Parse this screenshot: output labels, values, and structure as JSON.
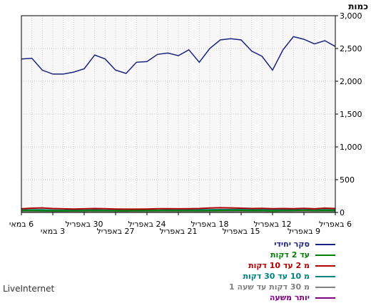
{
  "units_label": "כמות",
  "brand": "LiveInternet",
  "chart_data": {
    "type": "line",
    "y_axis_side": "right",
    "ylim": [
      0,
      3000
    ],
    "y_ticks": [
      "0",
      "500",
      "1,000",
      "1,500",
      "2,000",
      "2,500",
      "3,000"
    ],
    "y_tick_values": [
      0,
      500,
      1000,
      1500,
      2000,
      2500,
      3000
    ],
    "grid": true,
    "x_ticks": [
      {
        "label": "6 באפריל",
        "day": 0,
        "row": 1
      },
      {
        "label": "9 באפריל",
        "day": 3,
        "row": 2
      },
      {
        "label": "12 באפריל",
        "day": 6,
        "row": 1
      },
      {
        "label": "15 באפריל",
        "day": 9,
        "row": 2
      },
      {
        "label": "18 באפריל",
        "day": 12,
        "row": 1
      },
      {
        "label": "21 באפריל",
        "day": 15,
        "row": 2
      },
      {
        "label": "24 באפריל",
        "day": 18,
        "row": 1
      },
      {
        "label": "27 באפריל",
        "day": 21,
        "row": 2
      },
      {
        "label": "30 באפריל",
        "day": 24,
        "row": 1
      },
      {
        "label": "3 במאי",
        "day": 27,
        "row": 2
      },
      {
        "label": "6 במאי",
        "day": 30,
        "row": 1
      }
    ],
    "series": [
      {
        "name": "סקר יחידי",
        "color": "#1a237e",
        "values": [
          2530,
          2620,
          2570,
          2640,
          2680,
          2480,
          2170,
          2380,
          2460,
          2630,
          2650,
          2630,
          2500,
          2290,
          2480,
          2390,
          2430,
          2410,
          2300,
          2290,
          2120,
          2170,
          2340,
          2400,
          2190,
          2140,
          2110,
          2110,
          2170,
          2350,
          2340
        ]
      },
      {
        "name": "עד 2 דקות",
        "color": "#008000",
        "values": [
          30,
          32,
          28,
          35,
          30,
          28,
          25,
          30,
          28,
          32,
          35,
          30,
          28,
          27,
          30,
          28,
          30,
          29,
          27,
          28,
          25,
          26,
          28,
          30,
          27,
          26,
          25,
          25,
          27,
          30,
          30
        ]
      },
      {
        "name": "מ 2 עד 10 דקות",
        "color": "#b00000",
        "values": [
          60,
          65,
          55,
          62,
          58,
          60,
          58,
          62,
          60,
          65,
          70,
          72,
          68,
          60,
          58,
          55,
          58,
          56,
          52,
          50,
          50,
          52,
          58,
          60,
          55,
          52,
          55,
          60,
          70,
          65,
          55
        ]
      },
      {
        "name": "מ 10 עד 30 דקות",
        "color": "#008080",
        "values": [
          40,
          42,
          38,
          40,
          38,
          40,
          38,
          42,
          40,
          44,
          45,
          44,
          42,
          40,
          38,
          36,
          38,
          36,
          34,
          33,
          32,
          33,
          36,
          38,
          35,
          33,
          34,
          36,
          40,
          40,
          36
        ]
      },
      {
        "name": "מ 30 דקות עד שעה 1",
        "color": "#808080",
        "values": [
          15,
          16,
          14,
          15,
          14,
          15,
          14,
          16,
          15,
          16,
          17,
          16,
          15,
          15,
          14,
          13,
          14,
          13,
          12,
          12,
          12,
          12,
          13,
          14,
          13,
          12,
          12,
          13,
          15,
          15,
          13
        ]
      },
      {
        "name": "יותר משעה",
        "color": "#800080",
        "values": [
          8,
          8,
          7,
          8,
          7,
          8,
          7,
          8,
          8,
          8,
          9,
          8,
          8,
          8,
          7,
          7,
          7,
          7,
          6,
          6,
          6,
          6,
          7,
          7,
          7,
          6,
          6,
          7,
          8,
          8,
          7
        ]
      }
    ]
  }
}
